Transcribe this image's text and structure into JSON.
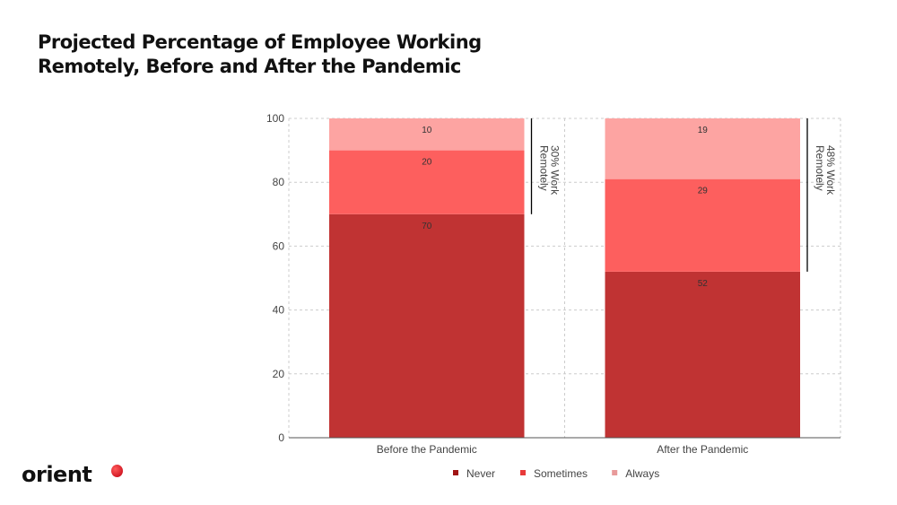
{
  "chart_data": {
    "type": "bar",
    "stacked": true,
    "title": "Projected Percentage of Employee Working Remotely, Before and After the Pandemic",
    "categories": [
      "Before the Pandemic",
      "After the Pandemic"
    ],
    "series": [
      {
        "name": "Never",
        "values": [
          70,
          52
        ],
        "color": "#c03333",
        "legend_color": "#a01414"
      },
      {
        "name": "Sometimes",
        "values": [
          20,
          29
        ],
        "color": "#fd5f5e",
        "legend_color": "#e83a3a"
      },
      {
        "name": "Always",
        "values": [
          10,
          19
        ],
        "color": "#fda4a2",
        "legend_color": "#e89a9a"
      }
    ],
    "annotations": [
      "30% Work Remotely",
      "48% Work Remotely"
    ],
    "ylim": [
      0,
      100
    ],
    "yticks": [
      0,
      20,
      40,
      60,
      80,
      100
    ],
    "grid": true,
    "legend": "bottom"
  },
  "logo": {
    "text": "orient"
  }
}
